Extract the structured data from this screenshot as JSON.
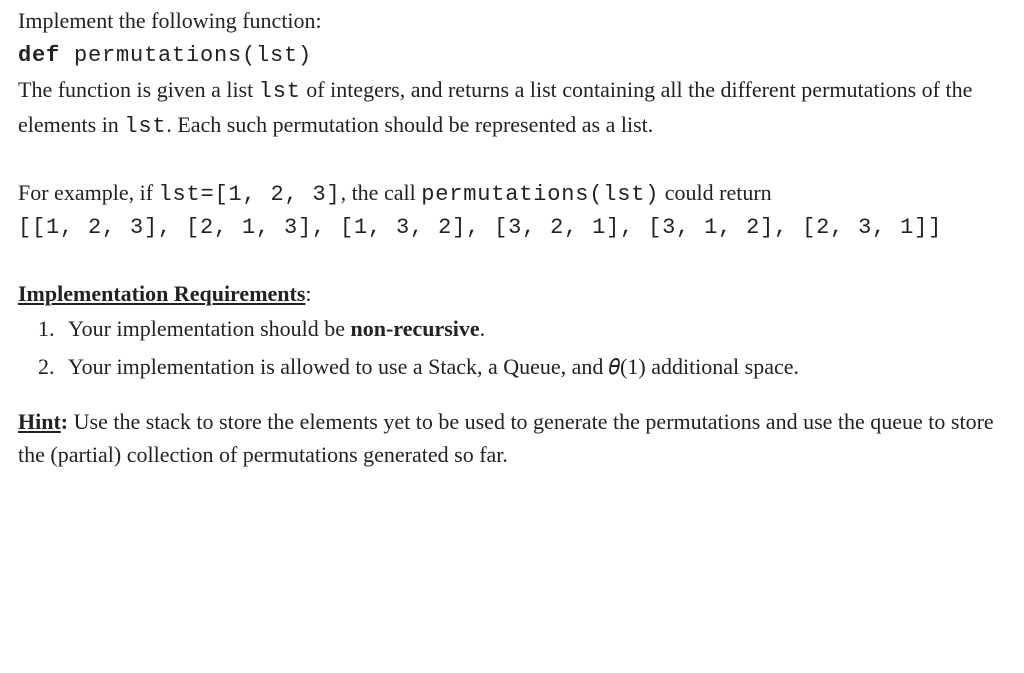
{
  "line1": "Implement the following function:",
  "sig_def": "def ",
  "sig_rest": "permutations(lst)",
  "para2_a": "The function is given a list ",
  "para2_code1": "lst",
  "para2_b": " of integers, and returns a list containing all the different permutations of the elements in ",
  "para2_code2": "lst",
  "para2_c": ". Each such permutation should be represented as a list.",
  "ex_a": "For example, if ",
  "ex_code1": "lst=[1, 2, 3]",
  "ex_b": ", the call ",
  "ex_code2": "permutations(lst)",
  "ex_c": " could return",
  "ex_output": "[[1, 2, 3], [2, 1, 3], [1, 3, 2], [3, 2, 1], [3, 1, 2], [2, 3, 1]]",
  "req_heading": "Implementation Requirements",
  "req_colon": ":",
  "req1_a": "Your implementation should be ",
  "req1_bold": "non-recursive",
  "req1_b": ".",
  "req2": "Your implementation is allowed to use a Stack, a Queue, and 𝜃(1) additional space.",
  "hint_label": "Hint",
  "hint_sep": ": ",
  "hint_body": "Use the stack to store the elements yet to be used to generate the permutations and use the queue to store the (partial) collection of permutations generated so far."
}
